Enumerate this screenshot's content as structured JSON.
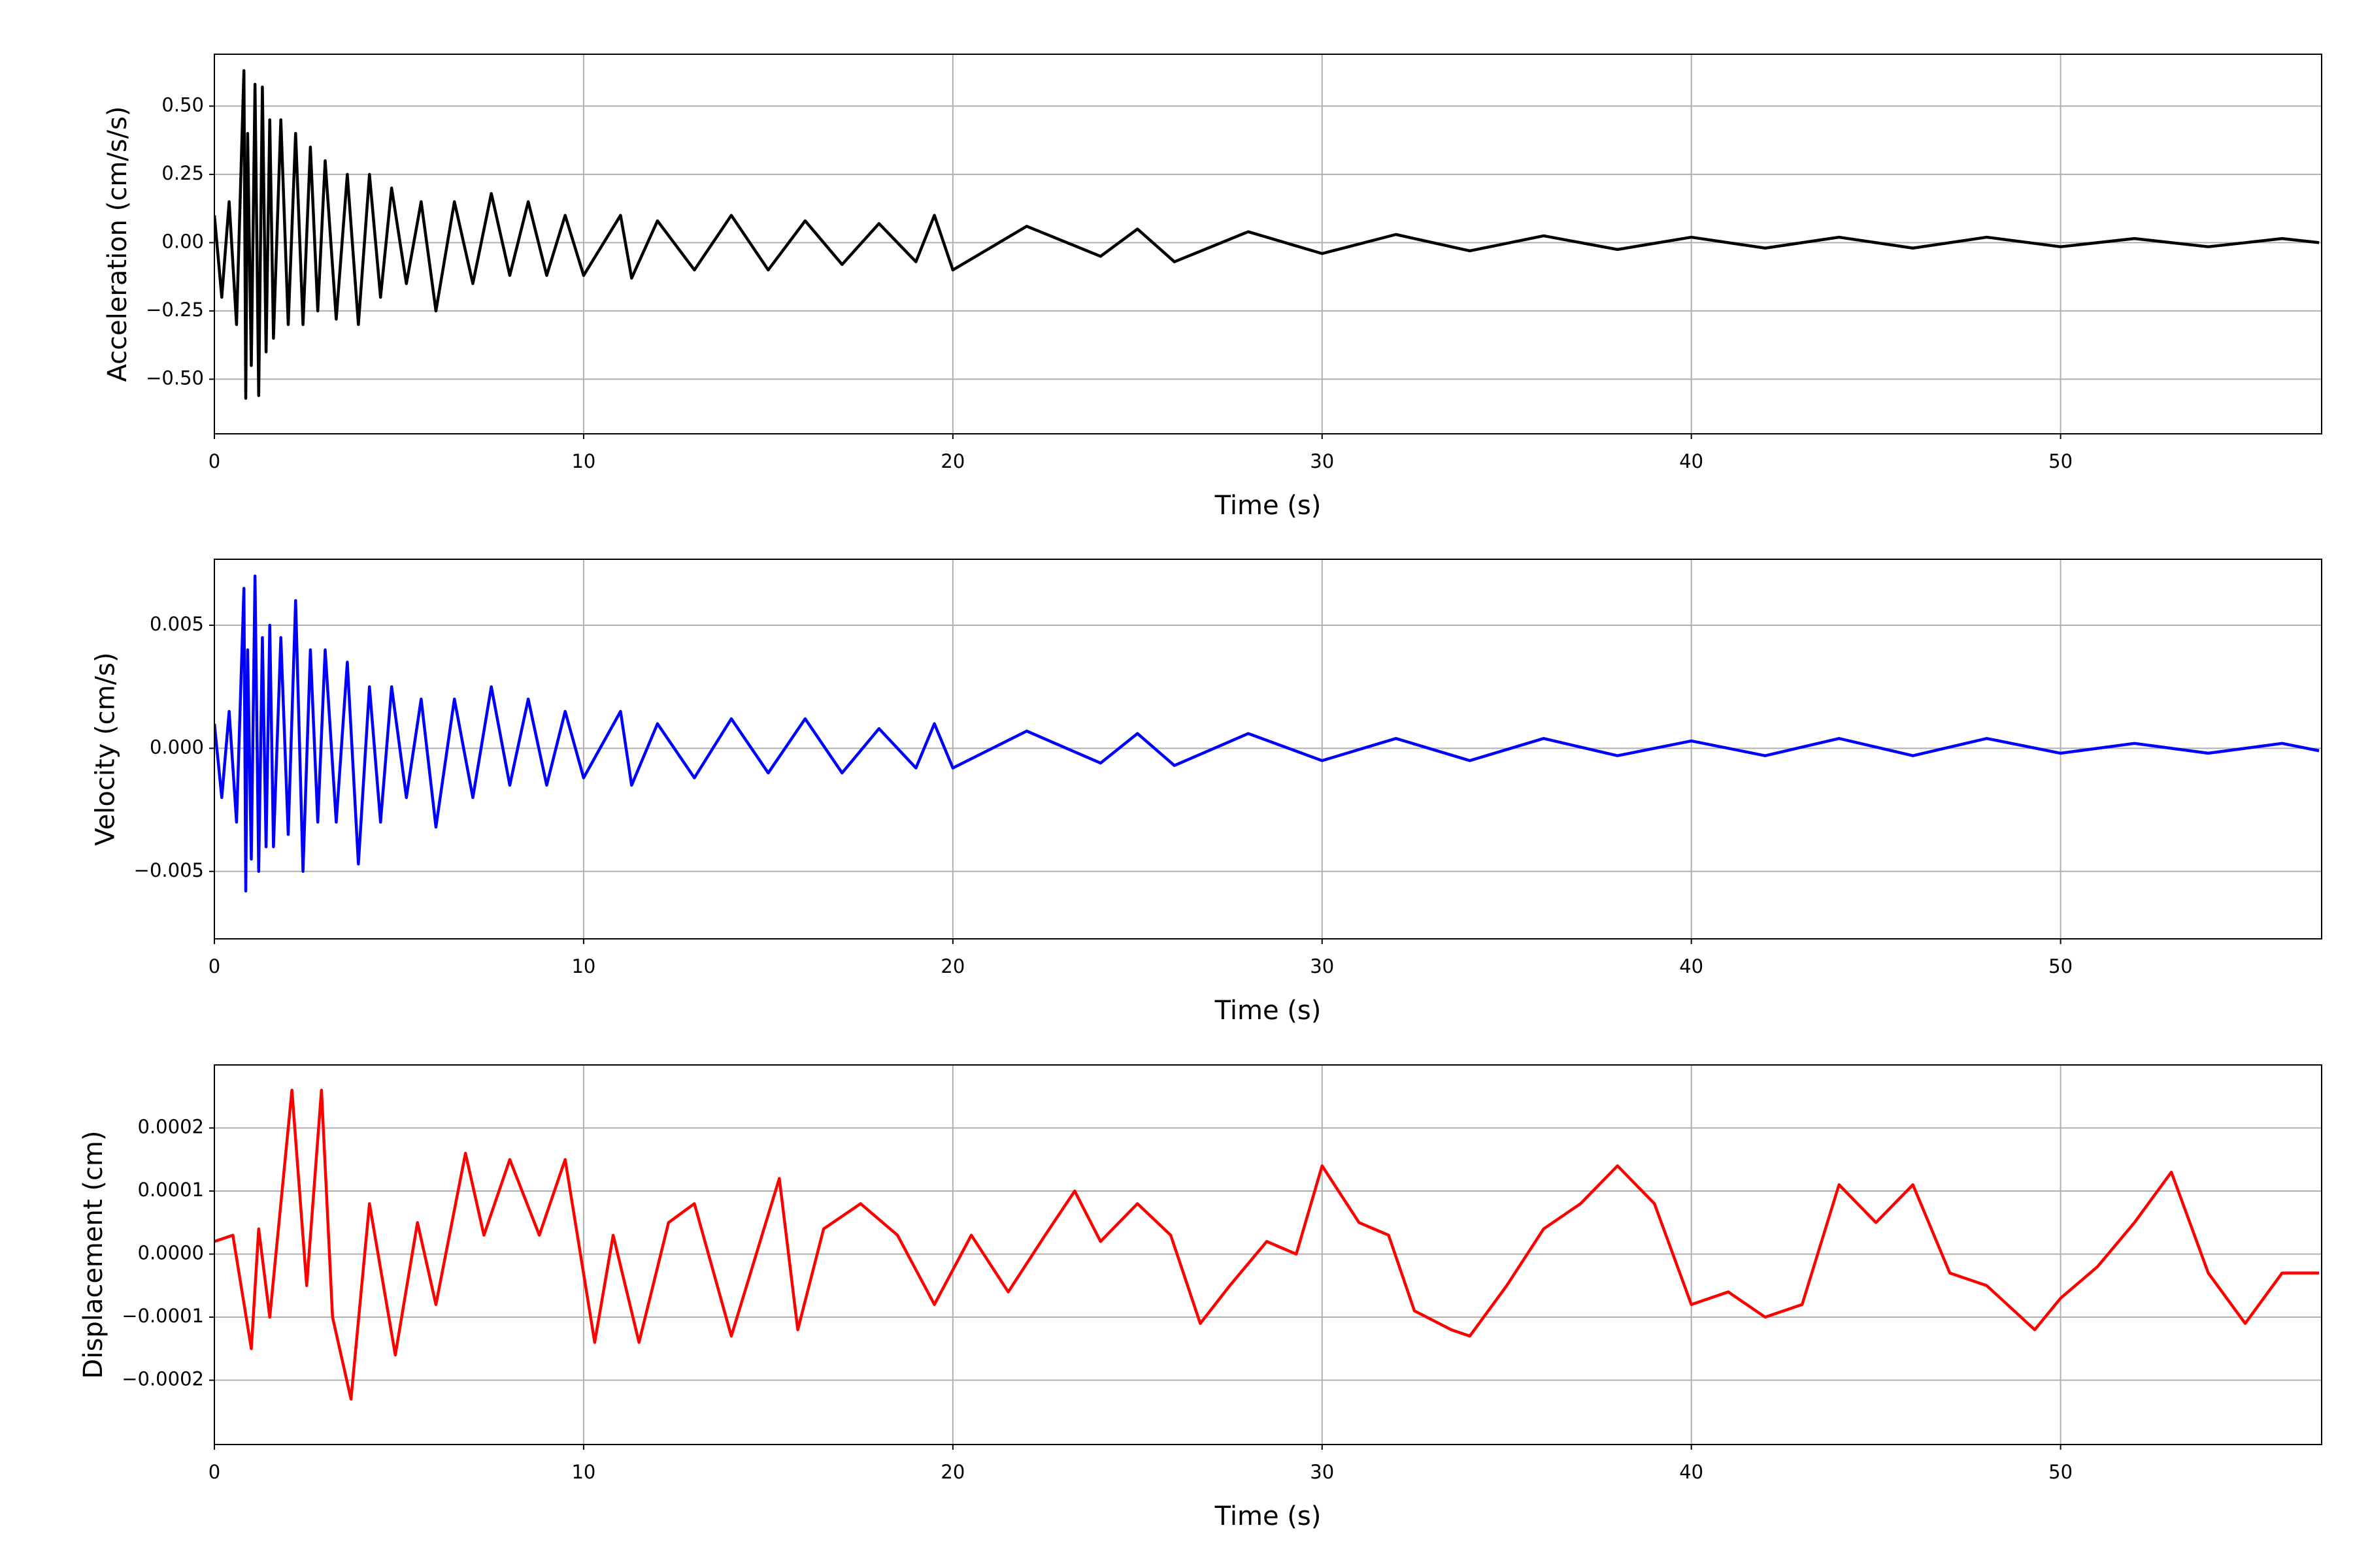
{
  "chart_data": [
    {
      "type": "line",
      "y_label": "Acceleration (cm/s/s)",
      "x_label": "Time (s)",
      "color": "#000000",
      "grid": true,
      "xlim": [
        0,
        57.07
      ],
      "xticks": [
        0,
        10,
        20,
        30,
        40,
        50
      ],
      "ylim": [
        -0.7,
        0.69
      ],
      "yticks": [
        {
          "value": -0.5,
          "label": "−0.50"
        },
        {
          "value": -0.25,
          "label": "−0.25"
        },
        {
          "value": 0,
          "label": "0.00"
        },
        0.25,
        {
          "value": 0.5,
          "label": "0.50"
        }
      ],
      "x": [
        0,
        0.2,
        0.4,
        0.6,
        0.8,
        0.85,
        0.9,
        1.0,
        1.1,
        1.2,
        1.3,
        1.4,
        1.5,
        1.6,
        1.8,
        2.0,
        2.2,
        2.4,
        2.6,
        2.8,
        3.0,
        3.3,
        3.6,
        3.9,
        4.2,
        4.5,
        4.8,
        5.2,
        5.6,
        6.0,
        6.5,
        7.0,
        7.5,
        8.0,
        8.5,
        9.0,
        9.5,
        10,
        11,
        11.3,
        12,
        13,
        14,
        15,
        16,
        17,
        18,
        19,
        19.5,
        20,
        22,
        24,
        25,
        26,
        28,
        30,
        32,
        34,
        36,
        38,
        40,
        42,
        44,
        46,
        48,
        50,
        52,
        54,
        56,
        57
      ],
      "values": [
        0.1,
        -0.2,
        0.15,
        -0.3,
        0.63,
        -0.57,
        0.4,
        -0.45,
        0.58,
        -0.56,
        0.57,
        -0.4,
        0.45,
        -0.35,
        0.45,
        -0.3,
        0.4,
        -0.3,
        0.35,
        -0.25,
        0.3,
        -0.28,
        0.25,
        -0.3,
        0.25,
        -0.2,
        0.2,
        -0.15,
        0.15,
        -0.25,
        0.15,
        -0.15,
        0.18,
        -0.12,
        0.15,
        -0.12,
        0.1,
        -0.12,
        0.1,
        -0.13,
        0.08,
        -0.1,
        0.1,
        -0.1,
        0.08,
        -0.08,
        0.07,
        -0.07,
        0.1,
        -0.1,
        0.06,
        -0.05,
        0.05,
        -0.07,
        0.04,
        -0.04,
        0.03,
        -0.03,
        0.025,
        -0.025,
        0.02,
        -0.02,
        0.02,
        -0.02,
        0.02,
        -0.015,
        0.015,
        -0.015,
        0.015,
        0
      ]
    },
    {
      "type": "line",
      "y_label": "Velocity (cm/s)",
      "x_label": "Time (s)",
      "color": "#0000ff",
      "grid": true,
      "xlim": [
        0,
        57.07
      ],
      "xticks": [
        0,
        10,
        20,
        30,
        40,
        50
      ],
      "ylim": [
        -0.00774,
        0.00768
      ],
      "yticks": [
        {
          "value": -0.005,
          "label": "−0.005"
        },
        {
          "value": 0,
          "label": "0.000"
        },
        0.005
      ],
      "x": [
        0,
        0.2,
        0.4,
        0.6,
        0.8,
        0.85,
        0.9,
        1.0,
        1.1,
        1.2,
        1.3,
        1.4,
        1.5,
        1.6,
        1.8,
        2.0,
        2.2,
        2.4,
        2.6,
        2.8,
        3.0,
        3.3,
        3.6,
        3.9,
        4.2,
        4.5,
        4.8,
        5.2,
        5.6,
        6.0,
        6.5,
        7.0,
        7.5,
        8.0,
        8.5,
        9.0,
        9.5,
        10,
        11,
        11.3,
        12,
        13,
        14,
        15,
        16,
        17,
        18,
        19,
        19.5,
        20,
        22,
        24,
        25,
        26,
        28,
        30,
        32,
        34,
        36,
        38,
        40,
        42,
        44,
        46,
        48,
        50,
        52,
        54,
        56,
        57
      ],
      "values": [
        0.001,
        -0.002,
        0.0015,
        -0.003,
        0.0065,
        -0.0058,
        0.004,
        -0.0045,
        0.007,
        -0.005,
        0.0045,
        -0.004,
        0.005,
        -0.004,
        0.0045,
        -0.0035,
        0.006,
        -0.005,
        0.004,
        -0.003,
        0.004,
        -0.003,
        0.0035,
        -0.0047,
        0.0025,
        -0.003,
        0.0025,
        -0.002,
        0.002,
        -0.0032,
        0.002,
        -0.002,
        0.0025,
        -0.0015,
        0.002,
        -0.0015,
        0.0015,
        -0.0012,
        0.0015,
        -0.0015,
        0.001,
        -0.0012,
        0.0012,
        -0.001,
        0.0012,
        -0.001,
        0.0008,
        -0.0008,
        0.001,
        -0.0008,
        0.0007,
        -0.0006,
        0.0006,
        -0.0007,
        0.0006,
        -0.0005,
        0.0004,
        -0.0005,
        0.0004,
        -0.0003,
        0.0003,
        -0.0003,
        0.0004,
        -0.0003,
        0.0004,
        -0.0002,
        0.0002,
        -0.0002,
        0.0002,
        -0.0001
      ]
    },
    {
      "type": "line",
      "y_label": "Displacement (cm)",
      "x_label": "Time (s)",
      "color": "#ff0000",
      "grid": true,
      "xlim": [
        0,
        57.07
      ],
      "xticks": [
        0,
        10,
        20,
        30,
        40,
        50
      ],
      "ylim": [
        -0.000302,
        0.0003
      ],
      "yticks": [
        {
          "value": -0.0002,
          "label": "−0.0002"
        },
        {
          "value": -0.0001,
          "label": "−0.0001"
        },
        {
          "value": 0,
          "label": "0.0000"
        },
        0.0001,
        0.0002
      ],
      "x": [
        0,
        0.5,
        1.0,
        1.2,
        1.5,
        2.1,
        2.5,
        2.9,
        3.2,
        3.7,
        4.2,
        4.9,
        5.5,
        6.0,
        6.8,
        7.3,
        8.0,
        8.8,
        9.5,
        10.3,
        10.8,
        11.5,
        12.3,
        13.0,
        14.0,
        15.3,
        15.8,
        16.5,
        17.5,
        18.5,
        19.5,
        20.5,
        21.5,
        22.5,
        23.3,
        24.0,
        25.0,
        25.9,
        26.7,
        27.5,
        28.5,
        29.3,
        30.0,
        31.0,
        31.8,
        32.5,
        33.5,
        34.0,
        35.0,
        36.0,
        37.0,
        38.0,
        39.0,
        40.0,
        41.0,
        42.0,
        43.0,
        44.0,
        45.0,
        46.0,
        47.0,
        48.0,
        49.3,
        50.0,
        51.0,
        52.0,
        53.0,
        54.0,
        55.0,
        56.0,
        57.0
      ],
      "values": [
        2e-05,
        3e-05,
        -0.00015,
        4e-05,
        -0.0001,
        0.00026,
        -5e-05,
        0.00026,
        -0.0001,
        -0.00023,
        8e-05,
        -0.00016,
        5e-05,
        -8e-05,
        0.00016,
        3e-05,
        0.00015,
        3e-05,
        0.00015,
        -0.00014,
        3e-05,
        -0.00014,
        5e-05,
        8e-05,
        -0.00013,
        0.00012,
        -0.00012,
        4e-05,
        8e-05,
        3e-05,
        -8e-05,
        3e-05,
        -6e-05,
        3e-05,
        0.0001,
        2e-05,
        8e-05,
        3e-05,
        -0.00011,
        -5e-05,
        2e-05,
        0,
        0.00014,
        5e-05,
        3e-05,
        -9e-05,
        -0.00012,
        -0.00013,
        -5e-05,
        4e-05,
        8e-05,
        0.00014,
        8e-05,
        -8e-05,
        -6e-05,
        -0.0001,
        -8e-05,
        0.00011,
        5e-05,
        0.00011,
        -3e-05,
        -5e-05,
        -0.00012,
        -7e-05,
        -2e-05,
        5e-05,
        0.00013,
        -3e-05,
        -0.00011,
        -3e-05,
        -3e-05
      ]
    }
  ]
}
